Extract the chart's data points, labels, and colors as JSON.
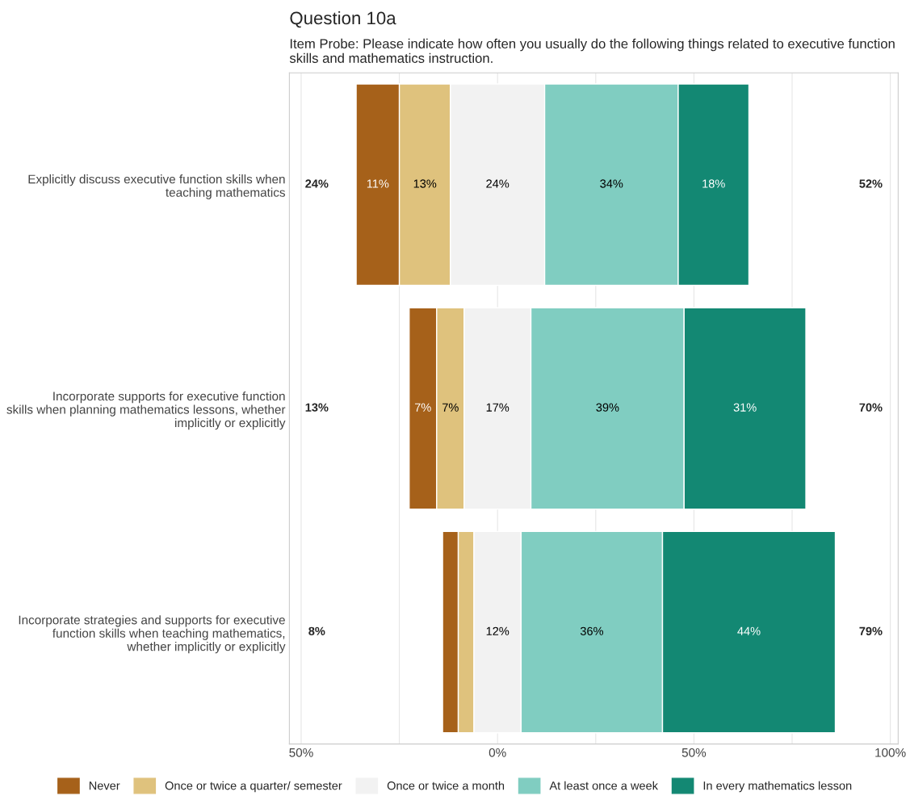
{
  "chart_data": {
    "type": "bar",
    "orientation": "horizontal",
    "title": "Question 10a",
    "subtitle": "Item Probe: Please indicate how often you usually do the following things related to executive function skills and mathematics instruction.",
    "categories": [
      "Explicitly discuss executive function skills when\nteaching mathematics",
      "Incorporate supports for executive function\nskills when planning mathematics lessons, whether\nimplicitly or explicitly",
      "Incorporate strategies and supports for executive\nfunction skills when teaching mathematics,\nwhether implicitly or explicitly"
    ],
    "series": [
      {
        "name": "Never",
        "color": "#a6611a",
        "base": [
          -36,
          -22.5,
          -14
        ],
        "values": [
          11,
          7,
          4
        ],
        "value_labels": [
          "11%",
          "7%",
          null
        ]
      },
      {
        "name": "Once or twice a quarter/ semester",
        "color": "#dfc27d",
        "base": [
          -25,
          -15.5,
          -10
        ],
        "values": [
          13,
          7,
          4
        ],
        "value_labels": [
          "13%",
          "7%",
          null
        ]
      },
      {
        "name": "Once or twice a month",
        "color": "#f2f2f2",
        "base": [
          -12,
          -8.5,
          -6
        ],
        "values": [
          24,
          17,
          12
        ],
        "value_labels": [
          "24%",
          "17%",
          "12%"
        ]
      },
      {
        "name": "At least once a week",
        "color": "#80cdc1",
        "base": [
          12,
          8.5,
          6
        ],
        "values": [
          34,
          39,
          36
        ],
        "value_labels": [
          "34%",
          "39%",
          "36%"
        ]
      },
      {
        "name": "In every mathematics lesson",
        "color": "#138873",
        "base": [
          46,
          47.5,
          42
        ],
        "values": [
          18,
          31,
          44
        ],
        "value_labels": [
          "18%",
          "31%",
          "44%"
        ]
      }
    ],
    "annotations": [
      "24%",
      "13%",
      "8%",
      "52%",
      "70%",
      "79%"
    ],
    "xlim": [
      -53,
      102
    ],
    "xticks": [
      {
        "value": -50,
        "label": "50%"
      },
      {
        "value": -25,
        "label": null
      },
      {
        "value": 0,
        "label": "0%"
      },
      {
        "value": 25,
        "label": null
      },
      {
        "value": 50,
        "label": "50%"
      },
      {
        "value": 75,
        "label": null
      },
      {
        "value": 100,
        "label": "100%"
      }
    ],
    "grid": "x",
    "legend": "bottom"
  }
}
